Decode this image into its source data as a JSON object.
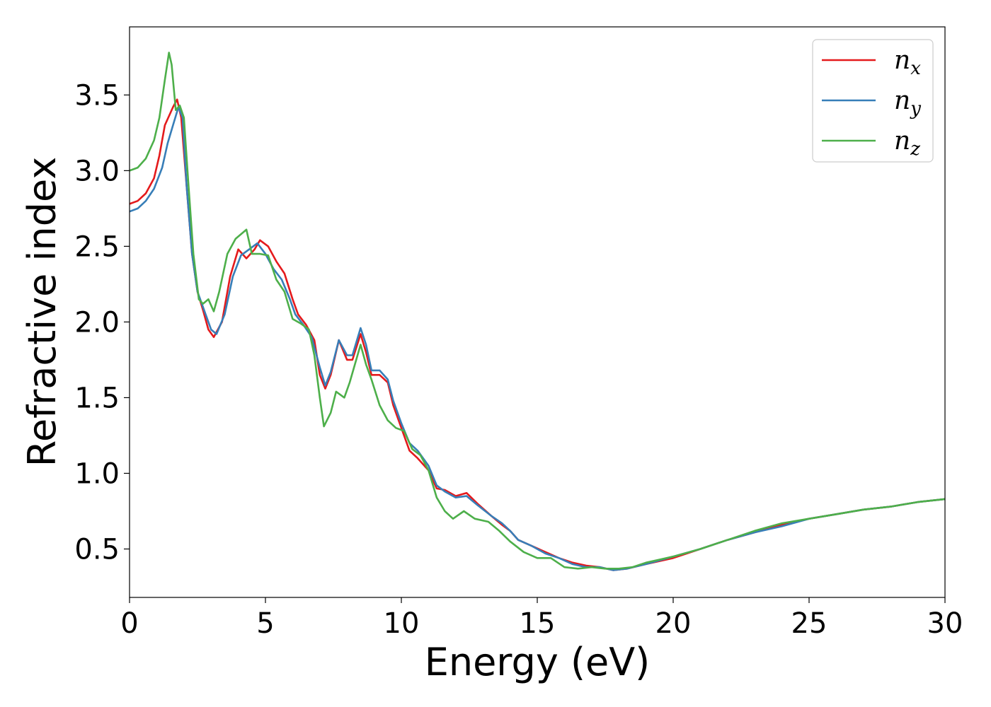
{
  "chart_data": {
    "type": "line",
    "title": "",
    "xlabel": "Energy (eV)",
    "ylabel": "Refractive index",
    "xlim": [
      0,
      30
    ],
    "ylim": [
      0.18,
      3.95
    ],
    "xticks": [
      0,
      5,
      10,
      15,
      20,
      25,
      30
    ],
    "yticks": [
      0.5,
      1.0,
      1.5,
      2.0,
      2.5,
      3.0,
      3.5
    ],
    "xtick_labels": [
      "0",
      "5",
      "10",
      "15",
      "20",
      "25",
      "30"
    ],
    "ytick_labels": [
      "0.5",
      "1.0",
      "1.5",
      "2.0",
      "2.5",
      "3.0",
      "3.5"
    ],
    "grid": false,
    "legend_position": "top-right",
    "series": [
      {
        "name": "n",
        "subscript": "x",
        "color": "#e41a1c",
        "points": [
          [
            0,
            2.78
          ],
          [
            0.3,
            2.8
          ],
          [
            0.6,
            2.85
          ],
          [
            0.9,
            2.95
          ],
          [
            1.1,
            3.1
          ],
          [
            1.3,
            3.3
          ],
          [
            1.5,
            3.38
          ],
          [
            1.6,
            3.42
          ],
          [
            1.75,
            3.47
          ],
          [
            1.9,
            3.35
          ],
          [
            2.1,
            2.9
          ],
          [
            2.3,
            2.45
          ],
          [
            2.5,
            2.2
          ],
          [
            2.7,
            2.08
          ],
          [
            2.9,
            1.95
          ],
          [
            3.1,
            1.9
          ],
          [
            3.4,
            2.0
          ],
          [
            3.7,
            2.3
          ],
          [
            4.0,
            2.48
          ],
          [
            4.3,
            2.42
          ],
          [
            4.6,
            2.48
          ],
          [
            4.8,
            2.54
          ],
          [
            5.1,
            2.5
          ],
          [
            5.4,
            2.4
          ],
          [
            5.7,
            2.32
          ],
          [
            6.0,
            2.15
          ],
          [
            6.2,
            2.05
          ],
          [
            6.5,
            1.98
          ],
          [
            6.8,
            1.88
          ],
          [
            7.0,
            1.65
          ],
          [
            7.2,
            1.56
          ],
          [
            7.4,
            1.65
          ],
          [
            7.7,
            1.88
          ],
          [
            8.0,
            1.75
          ],
          [
            8.2,
            1.75
          ],
          [
            8.5,
            1.92
          ],
          [
            8.7,
            1.8
          ],
          [
            8.9,
            1.65
          ],
          [
            9.2,
            1.65
          ],
          [
            9.5,
            1.6
          ],
          [
            9.7,
            1.45
          ],
          [
            10.0,
            1.3
          ],
          [
            10.3,
            1.15
          ],
          [
            10.6,
            1.1
          ],
          [
            11.0,
            1.02
          ],
          [
            11.3,
            0.9
          ],
          [
            11.6,
            0.89
          ],
          [
            12.0,
            0.85
          ],
          [
            12.4,
            0.87
          ],
          [
            12.8,
            0.8
          ],
          [
            13.3,
            0.72
          ],
          [
            13.7,
            0.66
          ],
          [
            14.0,
            0.62
          ],
          [
            14.3,
            0.56
          ],
          [
            14.8,
            0.52
          ],
          [
            15.3,
            0.48
          ],
          [
            15.8,
            0.44
          ],
          [
            16.3,
            0.41
          ],
          [
            16.8,
            0.39
          ],
          [
            17.3,
            0.38
          ],
          [
            17.8,
            0.36
          ],
          [
            18.3,
            0.37
          ],
          [
            19.0,
            0.4
          ],
          [
            20.0,
            0.44
          ],
          [
            21.0,
            0.5
          ],
          [
            22.0,
            0.56
          ],
          [
            23.0,
            0.61
          ],
          [
            24.0,
            0.66
          ],
          [
            25.0,
            0.7
          ],
          [
            26.0,
            0.73
          ],
          [
            27.0,
            0.76
          ],
          [
            28.0,
            0.78
          ],
          [
            29.0,
            0.81
          ],
          [
            30.0,
            0.83
          ]
        ]
      },
      {
        "name": "n",
        "subscript": "y",
        "color": "#377eb8",
        "points": [
          [
            0,
            2.73
          ],
          [
            0.3,
            2.75
          ],
          [
            0.6,
            2.8
          ],
          [
            0.9,
            2.88
          ],
          [
            1.2,
            3.02
          ],
          [
            1.4,
            3.18
          ],
          [
            1.6,
            3.3
          ],
          [
            1.8,
            3.42
          ],
          [
            1.95,
            3.35
          ],
          [
            2.1,
            2.9
          ],
          [
            2.3,
            2.45
          ],
          [
            2.5,
            2.2
          ],
          [
            2.8,
            2.05
          ],
          [
            3.0,
            1.95
          ],
          [
            3.2,
            1.92
          ],
          [
            3.5,
            2.05
          ],
          [
            3.8,
            2.3
          ],
          [
            4.1,
            2.44
          ],
          [
            4.4,
            2.48
          ],
          [
            4.7,
            2.52
          ],
          [
            5.0,
            2.45
          ],
          [
            5.3,
            2.35
          ],
          [
            5.6,
            2.28
          ],
          [
            5.9,
            2.15
          ],
          [
            6.1,
            2.05
          ],
          [
            6.4,
            1.98
          ],
          [
            6.7,
            1.9
          ],
          [
            7.0,
            1.7
          ],
          [
            7.2,
            1.58
          ],
          [
            7.4,
            1.67
          ],
          [
            7.7,
            1.88
          ],
          [
            8.0,
            1.78
          ],
          [
            8.2,
            1.78
          ],
          [
            8.5,
            1.96
          ],
          [
            8.7,
            1.85
          ],
          [
            8.9,
            1.68
          ],
          [
            9.2,
            1.68
          ],
          [
            9.5,
            1.62
          ],
          [
            9.7,
            1.48
          ],
          [
            10.0,
            1.33
          ],
          [
            10.3,
            1.2
          ],
          [
            10.6,
            1.15
          ],
          [
            11.0,
            1.05
          ],
          [
            11.3,
            0.92
          ],
          [
            11.6,
            0.88
          ],
          [
            12.0,
            0.84
          ],
          [
            12.4,
            0.85
          ],
          [
            12.8,
            0.79
          ],
          [
            13.3,
            0.72
          ],
          [
            13.7,
            0.67
          ],
          [
            14.0,
            0.62
          ],
          [
            14.3,
            0.56
          ],
          [
            14.8,
            0.52
          ],
          [
            15.3,
            0.47
          ],
          [
            15.8,
            0.44
          ],
          [
            16.3,
            0.4
          ],
          [
            16.8,
            0.38
          ],
          [
            17.3,
            0.38
          ],
          [
            17.8,
            0.36
          ],
          [
            18.3,
            0.37
          ],
          [
            19.0,
            0.4
          ],
          [
            20.0,
            0.45
          ],
          [
            21.0,
            0.5
          ],
          [
            22.0,
            0.56
          ],
          [
            23.0,
            0.61
          ],
          [
            24.0,
            0.65
          ],
          [
            25.0,
            0.7
          ],
          [
            26.0,
            0.73
          ],
          [
            27.0,
            0.76
          ],
          [
            28.0,
            0.78
          ],
          [
            29.0,
            0.81
          ],
          [
            30.0,
            0.83
          ]
        ]
      },
      {
        "name": "n",
        "subscript": "z",
        "color": "#4daf4a",
        "points": [
          [
            0,
            3.0
          ],
          [
            0.3,
            3.02
          ],
          [
            0.6,
            3.08
          ],
          [
            0.9,
            3.2
          ],
          [
            1.1,
            3.35
          ],
          [
            1.3,
            3.6
          ],
          [
            1.45,
            3.78
          ],
          [
            1.55,
            3.7
          ],
          [
            1.7,
            3.4
          ],
          [
            1.85,
            3.43
          ],
          [
            2.0,
            3.35
          ],
          [
            2.15,
            2.95
          ],
          [
            2.35,
            2.45
          ],
          [
            2.55,
            2.15
          ],
          [
            2.7,
            2.12
          ],
          [
            2.9,
            2.15
          ],
          [
            3.1,
            2.07
          ],
          [
            3.3,
            2.2
          ],
          [
            3.6,
            2.45
          ],
          [
            3.9,
            2.55
          ],
          [
            4.3,
            2.61
          ],
          [
            4.5,
            2.45
          ],
          [
            4.8,
            2.45
          ],
          [
            5.1,
            2.44
          ],
          [
            5.4,
            2.28
          ],
          [
            5.7,
            2.2
          ],
          [
            6.0,
            2.02
          ],
          [
            6.3,
            1.99
          ],
          [
            6.6,
            1.95
          ],
          [
            6.8,
            1.78
          ],
          [
            7.0,
            1.5
          ],
          [
            7.15,
            1.31
          ],
          [
            7.4,
            1.4
          ],
          [
            7.6,
            1.54
          ],
          [
            7.9,
            1.5
          ],
          [
            8.1,
            1.6
          ],
          [
            8.5,
            1.85
          ],
          [
            8.7,
            1.72
          ],
          [
            8.9,
            1.62
          ],
          [
            9.2,
            1.45
          ],
          [
            9.5,
            1.35
          ],
          [
            9.8,
            1.3
          ],
          [
            10.1,
            1.28
          ],
          [
            10.4,
            1.16
          ],
          [
            10.7,
            1.12
          ],
          [
            11.0,
            1.02
          ],
          [
            11.3,
            0.84
          ],
          [
            11.6,
            0.75
          ],
          [
            11.9,
            0.7
          ],
          [
            12.3,
            0.75
          ],
          [
            12.7,
            0.7
          ],
          [
            13.2,
            0.68
          ],
          [
            13.6,
            0.62
          ],
          [
            14.0,
            0.55
          ],
          [
            14.5,
            0.48
          ],
          [
            15.0,
            0.44
          ],
          [
            15.5,
            0.44
          ],
          [
            16.0,
            0.38
          ],
          [
            16.5,
            0.37
          ],
          [
            17.0,
            0.38
          ],
          [
            17.5,
            0.37
          ],
          [
            18.0,
            0.37
          ],
          [
            18.5,
            0.38
          ],
          [
            19.0,
            0.41
          ],
          [
            19.5,
            0.43
          ],
          [
            20.0,
            0.45
          ],
          [
            21.0,
            0.5
          ],
          [
            22.0,
            0.56
          ],
          [
            23.0,
            0.62
          ],
          [
            24.0,
            0.67
          ],
          [
            25.0,
            0.7
          ],
          [
            26.0,
            0.73
          ],
          [
            27.0,
            0.76
          ],
          [
            28.0,
            0.78
          ],
          [
            29.0,
            0.81
          ],
          [
            30.0,
            0.83
          ]
        ]
      }
    ]
  }
}
